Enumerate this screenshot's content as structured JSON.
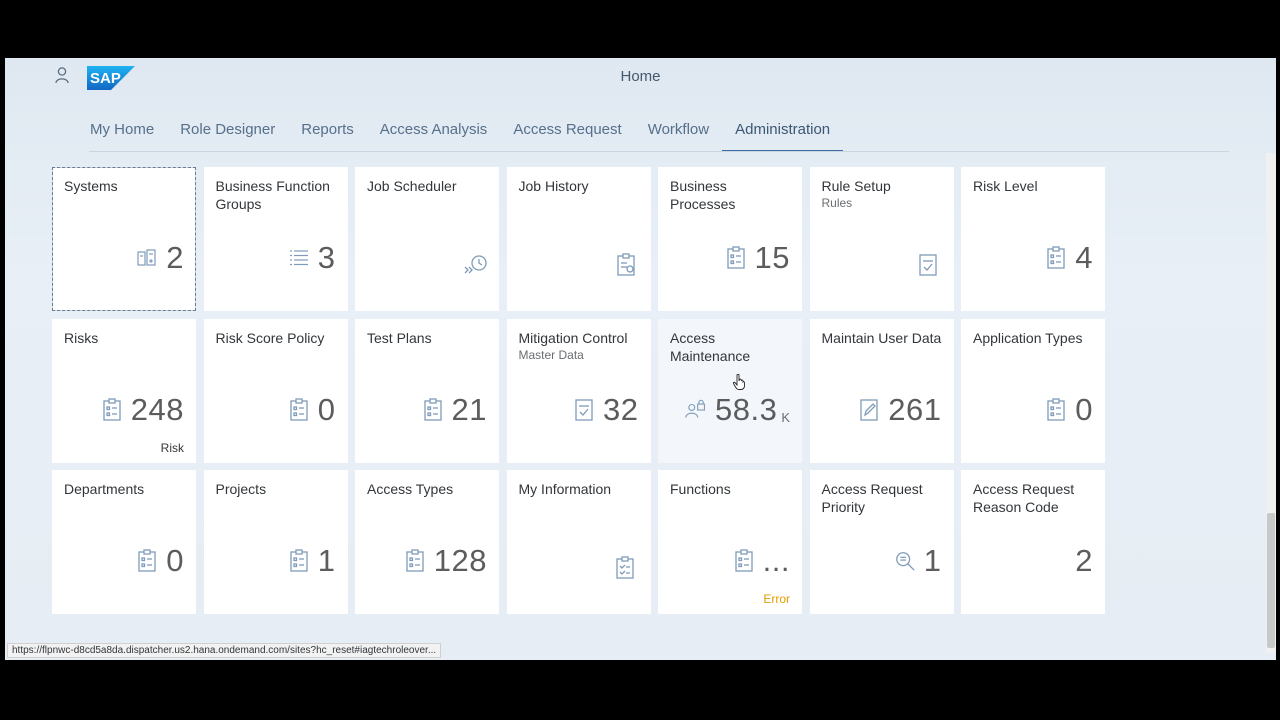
{
  "shell": {
    "title": "Home",
    "logo_text": "SAP",
    "user_icon": "user-icon"
  },
  "nav": {
    "tabs": [
      {
        "label": "My Home",
        "active": false
      },
      {
        "label": "Role Designer",
        "active": false
      },
      {
        "label": "Reports",
        "active": false
      },
      {
        "label": "Access Analysis",
        "active": false
      },
      {
        "label": "Access Request",
        "active": false
      },
      {
        "label": "Workflow",
        "active": false
      },
      {
        "label": "Administration",
        "active": true
      }
    ]
  },
  "tiles": [
    {
      "title": "Systems",
      "value": "2",
      "icon": "systems-icon"
    },
    {
      "title": "Business Function Groups",
      "value": "3",
      "icon": "list-icon"
    },
    {
      "title": "Job Scheduler",
      "icon": "job-scheduler-icon"
    },
    {
      "title": "Job History",
      "icon": "job-history-icon"
    },
    {
      "title": "Business Processes",
      "value": "15",
      "icon": "clipboard-icon"
    },
    {
      "title": "Rule Setup",
      "subtitle": "Rules",
      "icon": "document-check-icon"
    },
    {
      "title": "Risk Level",
      "value": "4",
      "icon": "clipboard-icon"
    },
    {
      "title": "Risks",
      "value": "248",
      "icon": "clipboard-icon",
      "footer": "Risk"
    },
    {
      "title": "Risk Score Policy",
      "value": "0",
      "icon": "clipboard-icon"
    },
    {
      "title": "Test Plans",
      "value": "21",
      "icon": "clipboard-icon"
    },
    {
      "title": "Mitigation Control",
      "subtitle": "Master Data",
      "value": "32",
      "icon": "document-check-icon"
    },
    {
      "title": "Access Maintenance",
      "value": "58.3",
      "unit": "K",
      "icon": "user-lock-icon"
    },
    {
      "title": "Maintain User Data",
      "value": "261",
      "icon": "edit-icon"
    },
    {
      "title": "Application Types",
      "value": "0",
      "icon": "clipboard-icon"
    },
    {
      "title": "Departments",
      "value": "0",
      "icon": "clipboard-icon"
    },
    {
      "title": "Projects",
      "value": "1",
      "icon": "clipboard-icon"
    },
    {
      "title": "Access Types",
      "value": "128",
      "icon": "clipboard-icon"
    },
    {
      "title": "My Information",
      "icon": "clipboard-check-icon"
    },
    {
      "title": "Functions",
      "value": "...",
      "icon": "clipboard-icon",
      "footer": "Error",
      "footer_status": "error"
    },
    {
      "title": "Access Request Priority",
      "value": "1",
      "icon": "search-detail-icon"
    },
    {
      "title": "Access Request Reason Code",
      "value": "2"
    }
  ],
  "status_bar": {
    "url": "https://flpnwc-d8cd5a8da.dispatcher.us2.hana.ondemand.com/sites?hc_reset#iagtechroleover..."
  },
  "colors": {
    "accent": "#3f6ea4",
    "icon": "#7f9bb9",
    "error": "#e09d00",
    "sap_blue": "#1e88e5"
  }
}
